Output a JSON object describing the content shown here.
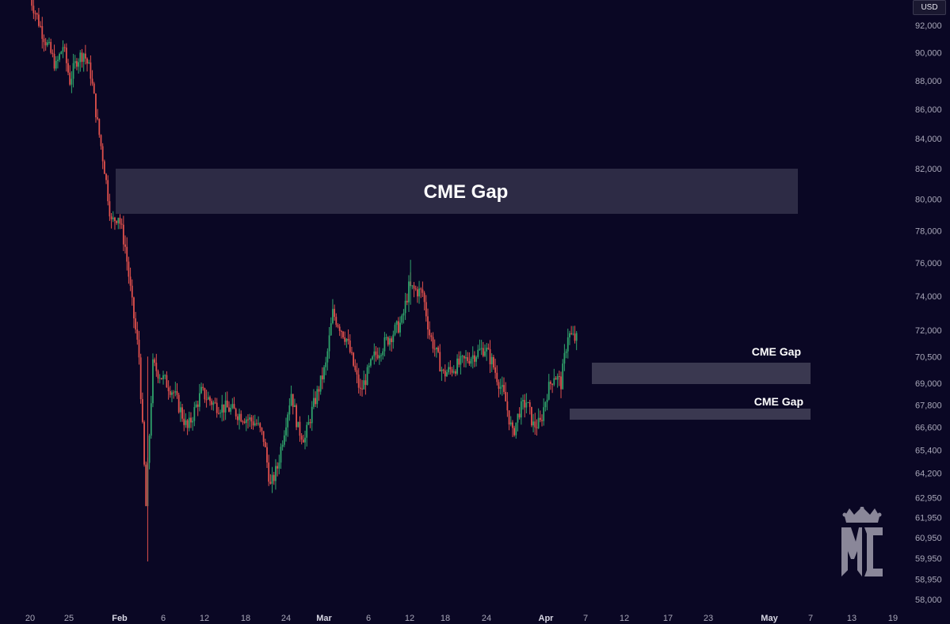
{
  "currency": "USD",
  "colors": {
    "background": "#0a0724",
    "up": "#2fa36b",
    "down": "#e0504c",
    "gap_fill": "#3a3850",
    "axis_text": "#a8a7b8",
    "logo": "#8a8799"
  },
  "chart_data": {
    "type": "candlestick",
    "y_scale": "log",
    "ylim": [
      57500,
      95000
    ],
    "y_ticks": [
      "92,000",
      "90,000",
      "88,000",
      "86,000",
      "84,000",
      "82,000",
      "80,000",
      "78,000",
      "76,000",
      "74,000",
      "72,000",
      "70,500",
      "69,000",
      "67,800",
      "66,600",
      "65,400",
      "64,200",
      "62,950",
      "61,950",
      "60,950",
      "59,950",
      "58,950",
      "58,000"
    ],
    "x_ticks": [
      {
        "label": "20",
        "month": false
      },
      {
        "label": "25",
        "month": false
      },
      {
        "label": "Feb",
        "month": true
      },
      {
        "label": "6",
        "month": false
      },
      {
        "label": "12",
        "month": false
      },
      {
        "label": "18",
        "month": false
      },
      {
        "label": "24",
        "month": false
      },
      {
        "label": "Mar",
        "month": true
      },
      {
        "label": "6",
        "month": false
      },
      {
        "label": "12",
        "month": false
      },
      {
        "label": "18",
        "month": false
      },
      {
        "label": "24",
        "month": false
      },
      {
        "label": "Apr",
        "month": true
      },
      {
        "label": "7",
        "month": false
      },
      {
        "label": "12",
        "month": false
      },
      {
        "label": "17",
        "month": false
      },
      {
        "label": "23",
        "month": false
      },
      {
        "label": "May",
        "month": true
      },
      {
        "label": "7",
        "month": false
      },
      {
        "label": "13",
        "month": false
      },
      {
        "label": "19",
        "month": false
      }
    ],
    "price_path": [
      [
        "Jan 20",
        94500
      ],
      [
        "Jan 22",
        91500
      ],
      [
        "Jan 24",
        89000
      ],
      [
        "Jan 25",
        90500
      ],
      [
        "Jan 26",
        88000
      ],
      [
        "Jan 27",
        89500
      ],
      [
        "Jan 28",
        90000
      ],
      [
        "Jan 29",
        88500
      ],
      [
        "Jan 30",
        85000
      ],
      [
        "Jan 31",
        82000
      ],
      [
        "Feb 1",
        78500
      ],
      [
        "Feb 2",
        79000
      ],
      [
        "Feb 3",
        77000
      ],
      [
        "Feb 4",
        73500
      ],
      [
        "Feb 5",
        70500
      ],
      [
        "Feb 6",
        62500
      ],
      [
        "Feb 7",
        70000
      ],
      [
        "Feb 8",
        69500
      ],
      [
        "Feb 10",
        68500
      ],
      [
        "Feb 12",
        66500
      ],
      [
        "Feb 14",
        68500
      ],
      [
        "Feb 16",
        67800
      ],
      [
        "Feb 18",
        67600
      ],
      [
        "Feb 20",
        67200
      ],
      [
        "Feb 22",
        66800
      ],
      [
        "Feb 23",
        66000
      ],
      [
        "Feb 24",
        63500
      ],
      [
        "Feb 25",
        64500
      ],
      [
        "Feb 27",
        68500
      ],
      [
        "Feb 28",
        66500
      ],
      [
        "Mar 1",
        66000
      ],
      [
        "Mar 2",
        67500
      ],
      [
        "Mar 4",
        70000
      ],
      [
        "Mar 5",
        73000
      ],
      [
        "Mar 7",
        71500
      ],
      [
        "Mar 9",
        68500
      ],
      [
        "Mar 11",
        70500
      ],
      [
        "Mar 13",
        71500
      ],
      [
        "Mar 15",
        72500
      ],
      [
        "Mar 16",
        74500
      ],
      [
        "Mar 18",
        74200
      ],
      [
        "Mar 19",
        71800
      ],
      [
        "Mar 21",
        69500
      ],
      [
        "Mar 23",
        70000
      ],
      [
        "Mar 25",
        70500
      ],
      [
        "Mar 27",
        71000
      ],
      [
        "Mar 28",
        70200
      ],
      [
        "Mar 30",
        68000
      ],
      [
        "Mar 31",
        66200
      ],
      [
        "Apr 1",
        67500
      ],
      [
        "Apr 2",
        68000
      ],
      [
        "Apr 3",
        66700
      ],
      [
        "Apr 4",
        66800
      ],
      [
        "Apr 5",
        68500
      ],
      [
        "Apr 6",
        69500
      ],
      [
        "Apr 7",
        69000
      ],
      [
        "Apr 8",
        71800
      ],
      [
        "Apr 9",
        71500
      ]
    ],
    "annotations": [
      {
        "label": "CME Gap",
        "range": [
          79500,
          82500
        ],
        "from": "Jan 31",
        "to": "Apr 22"
      },
      {
        "label": "CME Gap",
        "range": [
          69300,
          70300
        ],
        "from": "Apr 8",
        "to": "May 8"
      },
      {
        "label": "CME Gap",
        "range": [
          67450,
          67850
        ],
        "from": "Apr 6",
        "to": "May 8"
      }
    ]
  }
}
